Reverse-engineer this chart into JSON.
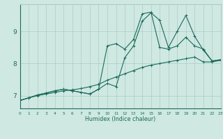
{
  "xlabel": "Humidex (Indice chaleur)",
  "bg_color": "#cfe8e2",
  "grid_color": "#aaccc5",
  "line_color": "#1a6b5a",
  "x_min": 0,
  "x_max": 23,
  "y_min": 6.6,
  "y_max": 9.85,
  "yticks": [
    7,
    8,
    9
  ],
  "xticks": [
    0,
    1,
    2,
    3,
    4,
    5,
    6,
    7,
    8,
    9,
    10,
    11,
    12,
    13,
    14,
    15,
    16,
    17,
    18,
    19,
    20,
    21,
    22,
    23
  ],
  "series1_x": [
    0,
    1,
    2,
    3,
    4,
    5,
    6,
    7,
    8,
    9,
    10,
    11,
    12,
    13,
    14,
    15,
    16,
    17,
    18,
    19,
    20,
    21,
    22,
    23
  ],
  "series1_y": [
    6.85,
    6.93,
    7.0,
    7.05,
    7.1,
    7.15,
    7.18,
    7.22,
    7.28,
    7.35,
    7.48,
    7.58,
    7.68,
    7.78,
    7.88,
    7.95,
    8.0,
    8.05,
    8.1,
    8.15,
    8.2,
    8.05,
    8.05,
    8.1
  ],
  "series2_x": [
    0,
    1,
    2,
    3,
    4,
    5,
    6,
    7,
    8,
    9,
    10,
    11,
    12,
    13,
    14,
    15,
    16,
    17,
    18,
    19,
    20,
    21,
    22,
    23
  ],
  "series2_y": [
    6.85,
    6.93,
    7.02,
    7.08,
    7.15,
    7.2,
    7.15,
    7.1,
    7.05,
    7.2,
    8.55,
    8.62,
    8.45,
    8.75,
    9.55,
    9.6,
    8.5,
    8.45,
    8.55,
    8.82,
    8.55,
    8.45,
    8.08,
    8.12
  ],
  "series3_x": [
    0,
    1,
    2,
    3,
    4,
    5,
    6,
    7,
    8,
    9,
    10,
    11,
    12,
    13,
    14,
    15,
    16,
    17,
    18,
    19,
    20,
    21,
    22,
    23
  ],
  "series3_y": [
    6.85,
    6.93,
    7.02,
    7.08,
    7.15,
    7.2,
    7.15,
    7.1,
    7.05,
    7.2,
    7.38,
    7.28,
    8.18,
    8.55,
    9.32,
    9.58,
    9.35,
    8.5,
    9.0,
    9.5,
    8.85,
    8.42,
    8.08,
    8.12
  ]
}
